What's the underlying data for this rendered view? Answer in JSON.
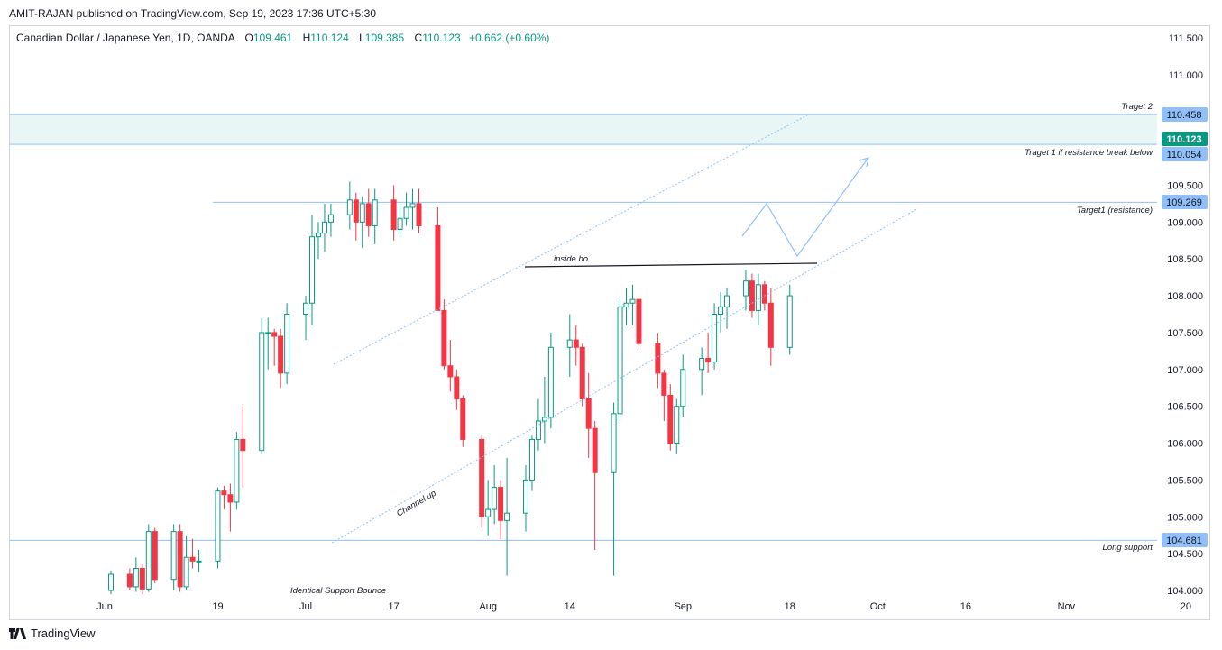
{
  "header": {
    "published_by": "AMIT-RAJAN published on TradingView.com, Sep 19, 2023 17:36 UTC+5:30"
  },
  "legend": {
    "symbol": "Canadian Dollar / Japanese Yen, 1D, OANDA",
    "open_label": "O",
    "open": "109.461",
    "high_label": "H",
    "high": "110.124",
    "low_label": "L",
    "low": "109.385",
    "close_label": "C",
    "close": "110.123",
    "change": "+0.662 (+0.60%)"
  },
  "footer": {
    "brand": "TradingView",
    "logo_icon": "tradingview-logo-icon"
  },
  "colors": {
    "up": "#089981",
    "down": "#f23645",
    "line": "#90bff9",
    "zone": "#e8f7f6",
    "current": "#089981"
  },
  "chart_data": {
    "type": "candlestick",
    "title": "Canadian Dollar / Japanese Yen, 1D, OANDA",
    "ylim": [
      103.95,
      111.85
    ],
    "y_ticks": [
      "111.500",
      "111.000",
      "109.500",
      "109.000",
      "108.500",
      "108.000",
      "107.500",
      "107.000",
      "106.500",
      "106.000",
      "105.500",
      "105.000",
      "104.500",
      "104.000"
    ],
    "x_ticks": [
      {
        "label": "Jun",
        "date": "2023-06-01"
      },
      {
        "label": "19",
        "date": "2023-06-19"
      },
      {
        "label": "Jul",
        "date": "2023-07-03"
      },
      {
        "label": "17",
        "date": "2023-07-17"
      },
      {
        "label": "Aug",
        "date": "2023-08-01"
      },
      {
        "label": "14",
        "date": "2023-08-14"
      },
      {
        "label": "Sep",
        "date": "2023-09-01"
      },
      {
        "label": "18",
        "date": "2023-09-18"
      },
      {
        "label": "Oct",
        "date": "2023-10-02"
      },
      {
        "label": "16",
        "date": "2023-10-16"
      },
      {
        "label": "Nov",
        "date": "2023-11-01"
      },
      {
        "label": "20",
        "date": "2023-11-20"
      }
    ],
    "candles": [
      {
        "date": "2023-06-02",
        "o": 104.0,
        "h": 104.27,
        "l": 103.95,
        "c": 104.22
      },
      {
        "date": "2023-06-05",
        "o": 104.22,
        "h": 104.3,
        "l": 104.0,
        "c": 104.05
      },
      {
        "date": "2023-06-06",
        "o": 104.05,
        "h": 104.45,
        "l": 103.98,
        "c": 104.3
      },
      {
        "date": "2023-06-07",
        "o": 104.3,
        "h": 104.35,
        "l": 103.95,
        "c": 104.02
      },
      {
        "date": "2023-06-08",
        "o": 104.02,
        "h": 104.9,
        "l": 103.98,
        "c": 104.8
      },
      {
        "date": "2023-06-09",
        "o": 104.8,
        "h": 104.85,
        "l": 104.1,
        "c": 104.15
      },
      {
        "date": "2023-06-12",
        "o": 104.15,
        "h": 104.9,
        "l": 104.0,
        "c": 104.8
      },
      {
        "date": "2023-06-13",
        "o": 104.8,
        "h": 104.9,
        "l": 103.98,
        "c": 104.05
      },
      {
        "date": "2023-06-14",
        "o": 104.05,
        "h": 104.75,
        "l": 104.0,
        "c": 104.45
      },
      {
        "date": "2023-06-15",
        "o": 104.45,
        "h": 104.7,
        "l": 104.3,
        "c": 104.4
      },
      {
        "date": "2023-06-16",
        "o": 104.4,
        "h": 104.55,
        "l": 104.25,
        "c": 104.4
      },
      {
        "date": "2023-06-19",
        "o": 104.4,
        "h": 105.4,
        "l": 104.3,
        "c": 105.35
      },
      {
        "date": "2023-06-20",
        "o": 105.35,
        "h": 105.42,
        "l": 105.1,
        "c": 105.3
      },
      {
        "date": "2023-06-21",
        "o": 105.3,
        "h": 105.45,
        "l": 104.8,
        "c": 105.2
      },
      {
        "date": "2023-06-22",
        "o": 105.2,
        "h": 106.15,
        "l": 105.1,
        "c": 106.05
      },
      {
        "date": "2023-06-23",
        "o": 106.05,
        "h": 106.5,
        "l": 105.4,
        "c": 105.9
      },
      {
        "date": "2023-06-26",
        "o": 105.9,
        "h": 107.7,
        "l": 105.85,
        "c": 107.5
      },
      {
        "date": "2023-06-27",
        "o": 107.5,
        "h": 107.7,
        "l": 107.0,
        "c": 107.5
      },
      {
        "date": "2023-06-28",
        "o": 107.5,
        "h": 107.55,
        "l": 107.05,
        "c": 107.45
      },
      {
        "date": "2023-06-29",
        "o": 107.45,
        "h": 107.55,
        "l": 106.75,
        "c": 106.95
      },
      {
        "date": "2023-06-30",
        "o": 106.95,
        "h": 107.9,
        "l": 106.8,
        "c": 107.75
      },
      {
        "date": "2023-07-03",
        "o": 107.75,
        "h": 108.0,
        "l": 107.4,
        "c": 107.9
      },
      {
        "date": "2023-07-04",
        "o": 107.9,
        "h": 109.1,
        "l": 107.6,
        "c": 108.8
      },
      {
        "date": "2023-07-05",
        "o": 108.8,
        "h": 109.0,
        "l": 108.5,
        "c": 108.85
      },
      {
        "date": "2023-07-06",
        "o": 108.85,
        "h": 109.25,
        "l": 108.6,
        "c": 109.0
      },
      {
        "date": "2023-07-07",
        "o": 109.0,
        "h": 109.25,
        "l": 108.8,
        "c": 109.1
      },
      {
        "date": "2023-07-10",
        "o": 109.1,
        "h": 109.55,
        "l": 108.9,
        "c": 109.3
      },
      {
        "date": "2023-07-11",
        "o": 109.3,
        "h": 109.4,
        "l": 108.75,
        "c": 109.0
      },
      {
        "date": "2023-07-12",
        "o": 109.0,
        "h": 109.35,
        "l": 108.65,
        "c": 109.25
      },
      {
        "date": "2023-07-13",
        "o": 109.25,
        "h": 109.45,
        "l": 108.8,
        "c": 108.95
      },
      {
        "date": "2023-07-14",
        "o": 108.95,
        "h": 109.45,
        "l": 108.7,
        "c": 109.3
      },
      {
        "date": "2023-07-17",
        "o": 109.3,
        "h": 109.5,
        "l": 108.75,
        "c": 108.9
      },
      {
        "date": "2023-07-18",
        "o": 108.9,
        "h": 109.25,
        "l": 108.8,
        "c": 109.05
      },
      {
        "date": "2023-07-19",
        "o": 109.05,
        "h": 109.4,
        "l": 108.95,
        "c": 109.2
      },
      {
        "date": "2023-07-20",
        "o": 109.2,
        "h": 109.45,
        "l": 108.9,
        "c": 109.25
      },
      {
        "date": "2023-07-21",
        "o": 109.25,
        "h": 109.45,
        "l": 108.85,
        "c": 108.95
      },
      {
        "date": "2023-07-24",
        "o": 108.95,
        "h": 109.2,
        "l": 107.8,
        "c": 107.8
      },
      {
        "date": "2023-07-25",
        "o": 107.8,
        "h": 107.95,
        "l": 107.0,
        "c": 107.05
      },
      {
        "date": "2023-07-26",
        "o": 107.05,
        "h": 107.4,
        "l": 106.7,
        "c": 106.9
      },
      {
        "date": "2023-07-27",
        "o": 106.9,
        "h": 107.0,
        "l": 106.45,
        "c": 106.6
      },
      {
        "date": "2023-07-28",
        "o": 106.6,
        "h": 106.65,
        "l": 105.95,
        "c": 106.05
      },
      {
        "date": "2023-07-31",
        "o": 106.05,
        "h": 106.1,
        "l": 104.85,
        "c": 105.0
      },
      {
        "date": "2023-08-01",
        "o": 105.0,
        "h": 105.5,
        "l": 104.75,
        "c": 105.1
      },
      {
        "date": "2023-08-02",
        "o": 105.1,
        "h": 105.7,
        "l": 104.9,
        "c": 105.4
      },
      {
        "date": "2023-08-03",
        "o": 105.4,
        "h": 105.5,
        "l": 104.7,
        "c": 104.95
      },
      {
        "date": "2023-08-04",
        "o": 104.95,
        "h": 105.8,
        "l": 104.2,
        "c": 105.05
      },
      {
        "date": "2023-08-07",
        "o": 105.05,
        "h": 105.7,
        "l": 104.8,
        "c": 105.5
      },
      {
        "date": "2023-08-08",
        "o": 105.5,
        "h": 106.1,
        "l": 105.35,
        "c": 106.05
      },
      {
        "date": "2023-08-09",
        "o": 106.05,
        "h": 106.6,
        "l": 105.9,
        "c": 106.3
      },
      {
        "date": "2023-08-10",
        "o": 106.3,
        "h": 106.9,
        "l": 106.0,
        "c": 106.35
      },
      {
        "date": "2023-08-11",
        "o": 106.35,
        "h": 107.5,
        "l": 106.2,
        "c": 107.3
      },
      {
        "date": "2023-08-14",
        "o": 107.3,
        "h": 107.75,
        "l": 106.9,
        "c": 107.4
      },
      {
        "date": "2023-08-15",
        "o": 107.4,
        "h": 107.6,
        "l": 107.05,
        "c": 107.3
      },
      {
        "date": "2023-08-16",
        "o": 107.3,
        "h": 107.35,
        "l": 106.5,
        "c": 106.6
      },
      {
        "date": "2023-08-17",
        "o": 106.6,
        "h": 106.95,
        "l": 105.8,
        "c": 106.2
      },
      {
        "date": "2023-08-18",
        "o": 106.2,
        "h": 106.3,
        "l": 104.55,
        "c": 105.6
      },
      {
        "date": "2023-08-21",
        "o": 105.6,
        "h": 106.55,
        "l": 104.2,
        "c": 106.4
      },
      {
        "date": "2023-08-22",
        "o": 106.4,
        "h": 107.95,
        "l": 106.3,
        "c": 107.85
      },
      {
        "date": "2023-08-23",
        "o": 107.85,
        "h": 108.1,
        "l": 107.6,
        "c": 107.9
      },
      {
        "date": "2023-08-24",
        "o": 107.9,
        "h": 108.15,
        "l": 107.6,
        "c": 107.95
      },
      {
        "date": "2023-08-25",
        "o": 107.95,
        "h": 108.0,
        "l": 107.3,
        "c": 107.35
      },
      {
        "date": "2023-08-28",
        "o": 107.35,
        "h": 107.5,
        "l": 106.75,
        "c": 106.95
      },
      {
        "date": "2023-08-29",
        "o": 106.95,
        "h": 107.0,
        "l": 106.3,
        "c": 106.65
      },
      {
        "date": "2023-08-30",
        "o": 106.65,
        "h": 106.8,
        "l": 105.9,
        "c": 106.0
      },
      {
        "date": "2023-08-31",
        "o": 106.0,
        "h": 106.6,
        "l": 105.85,
        "c": 106.5
      },
      {
        "date": "2023-09-01",
        "o": 106.5,
        "h": 107.2,
        "l": 106.35,
        "c": 107.0
      },
      {
        "date": "2023-09-04",
        "o": 107.0,
        "h": 107.3,
        "l": 106.65,
        "c": 107.15
      },
      {
        "date": "2023-09-05",
        "o": 107.15,
        "h": 107.5,
        "l": 106.95,
        "c": 107.1
      },
      {
        "date": "2023-09-06",
        "o": 107.1,
        "h": 107.9,
        "l": 107.0,
        "c": 107.75
      },
      {
        "date": "2023-09-07",
        "o": 107.75,
        "h": 108.05,
        "l": 107.5,
        "c": 107.85
      },
      {
        "date": "2023-09-08",
        "o": 107.85,
        "h": 108.1,
        "l": 107.55,
        "c": 108.0
      },
      {
        "date": "2023-09-11",
        "o": 108.0,
        "h": 108.35,
        "l": 107.8,
        "c": 108.2
      },
      {
        "date": "2023-09-12",
        "o": 108.2,
        "h": 108.3,
        "l": 107.7,
        "c": 107.8
      },
      {
        "date": "2023-09-13",
        "o": 107.8,
        "h": 108.3,
        "l": 107.6,
        "c": 108.15
      },
      {
        "date": "2023-09-14",
        "o": 108.15,
        "h": 108.2,
        "l": 107.8,
        "c": 107.9
      },
      {
        "date": "2023-09-15",
        "o": 107.9,
        "h": 108.1,
        "l": 107.05,
        "c": 107.3
      },
      {
        "date": "2023-09-18",
        "o": 107.3,
        "h": 108.15,
        "l": 107.2,
        "c": 108.0
      }
    ]
  },
  "annotations": {
    "target2_label": "Traget 2",
    "target2_value": "110.458",
    "target1_label": "Traget 1 if resistance break below",
    "target1_value": "110.054",
    "resistance_label": "Target1 (resistance)",
    "resistance_value": "109.269",
    "support_label": "Long support",
    "support_value": "104.681",
    "current_value": "110.123",
    "inside_bo_label": "inside bo",
    "channel_label": "Channel up",
    "bounce_label": "Identical Support Bounce"
  }
}
